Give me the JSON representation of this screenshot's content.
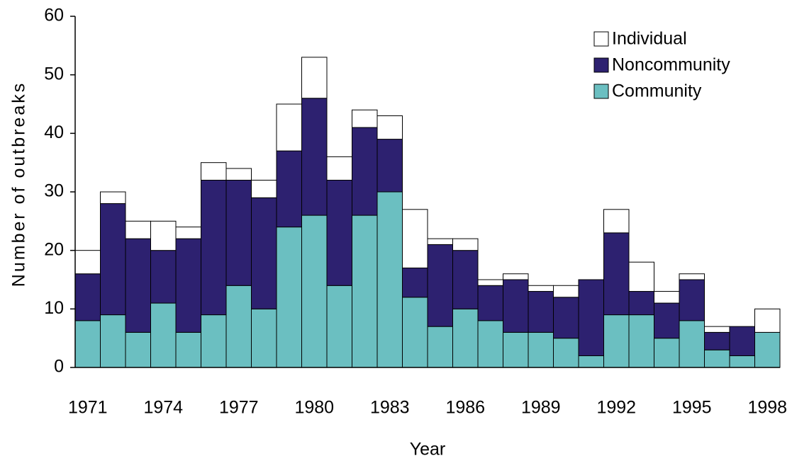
{
  "chart_data": {
    "type": "stacked-bar",
    "x_label": "Year",
    "y_label": "Number of outbreaks",
    "categories": [
      "1971",
      null,
      null,
      "1974",
      null,
      null,
      "1977",
      null,
      null,
      "1980",
      null,
      null,
      "1983",
      null,
      null,
      "1986",
      null,
      null,
      "1989",
      null,
      null,
      "1992",
      null,
      null,
      "1995",
      null,
      null,
      "1998"
    ],
    "series": [
      {
        "name": "Community",
        "color": "#6bbfc1",
        "values": [
          8,
          9,
          6,
          11,
          6,
          9,
          14,
          10,
          24,
          26,
          14,
          26,
          30,
          12,
          7,
          10,
          8,
          6,
          6,
          5,
          2,
          9,
          9,
          5,
          8,
          3,
          2,
          6
        ]
      },
      {
        "name": "Noncommunity",
        "color": "#2d2170",
        "values": [
          8,
          19,
          16,
          9,
          16,
          23,
          18,
          19,
          13,
          20,
          18,
          15,
          9,
          5,
          14,
          10,
          6,
          9,
          7,
          7,
          13,
          14,
          4,
          6,
          7,
          3,
          5,
          0
        ]
      },
      {
        "name": "Individual",
        "color": "#ffffff",
        "values": [
          4,
          2,
          3,
          5,
          2,
          3,
          2,
          3,
          8,
          7,
          4,
          3,
          4,
          10,
          1,
          2,
          1,
          1,
          1,
          2,
          0,
          4,
          5,
          2,
          1,
          1,
          0,
          4
        ]
      }
    ],
    "ylim": [
      0,
      60
    ],
    "yticks": [
      0,
      10,
      20,
      30,
      40,
      50,
      60
    ],
    "legend": "top-right",
    "grid": false
  }
}
